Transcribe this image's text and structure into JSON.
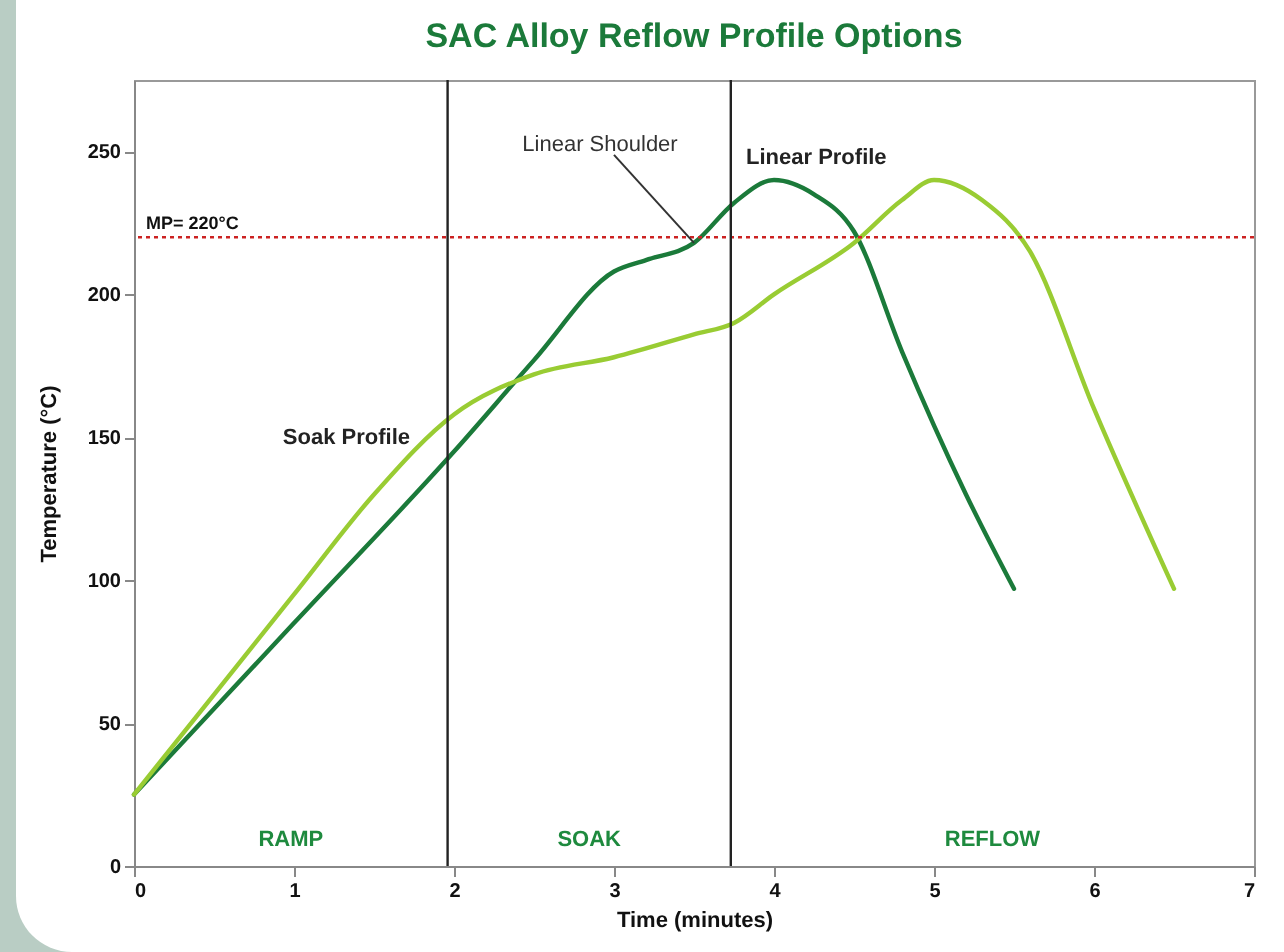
{
  "chart_data": {
    "type": "line",
    "title": "SAC Alloy Reflow Profile Options",
    "xlabel": "Time (minutes)",
    "ylabel": "Temperature (°C)",
    "xlim": [
      0,
      7
    ],
    "xticks": [
      0,
      1,
      2,
      3,
      4,
      5,
      6,
      7
    ],
    "ylim": [
      0,
      275
    ],
    "yticks": [
      0,
      50,
      100,
      150,
      200,
      250
    ],
    "grid": false,
    "marker": "none",
    "line_style": "solid",
    "series": [
      {
        "name": "Linear Profile",
        "color": "#1b7a3a",
        "x": [
          0,
          1,
          2,
          2.5,
          3,
          3.2,
          3.5,
          3.75,
          4,
          4.25,
          4.5,
          4.8,
          5.2,
          5.5
        ],
        "values": [
          25,
          85,
          145,
          177,
          208,
          212,
          218,
          232,
          240,
          235,
          222,
          180,
          130,
          97
        ]
      },
      {
        "name": "Soak Profile",
        "color": "#99cc33",
        "x": [
          0,
          1,
          1.5,
          2,
          2.5,
          3,
          3.5,
          3.75,
          4,
          4.5,
          4.8,
          5,
          5.3,
          5.6,
          6,
          6.5
        ],
        "values": [
          25,
          95,
          130,
          158,
          172,
          178,
          186,
          190,
          200,
          218,
          233,
          240,
          233,
          215,
          160,
          97
        ]
      }
    ],
    "ref_lines": [
      {
        "axis": "y",
        "value": 220,
        "label": "MP= 220°C",
        "color": "#cc2222",
        "line_style": "dotted"
      },
      {
        "axis": "x",
        "value": 1.96,
        "color": "#222222",
        "line_style": "solid"
      },
      {
        "axis": "x",
        "value": 3.73,
        "color": "#222222",
        "line_style": "solid"
      }
    ],
    "annotations": [
      {
        "text": "Linear Shoulder",
        "x": 3.5,
        "y": 218
      },
      "RAMP",
      "SOAK",
      "REFLOW"
    ]
  }
}
